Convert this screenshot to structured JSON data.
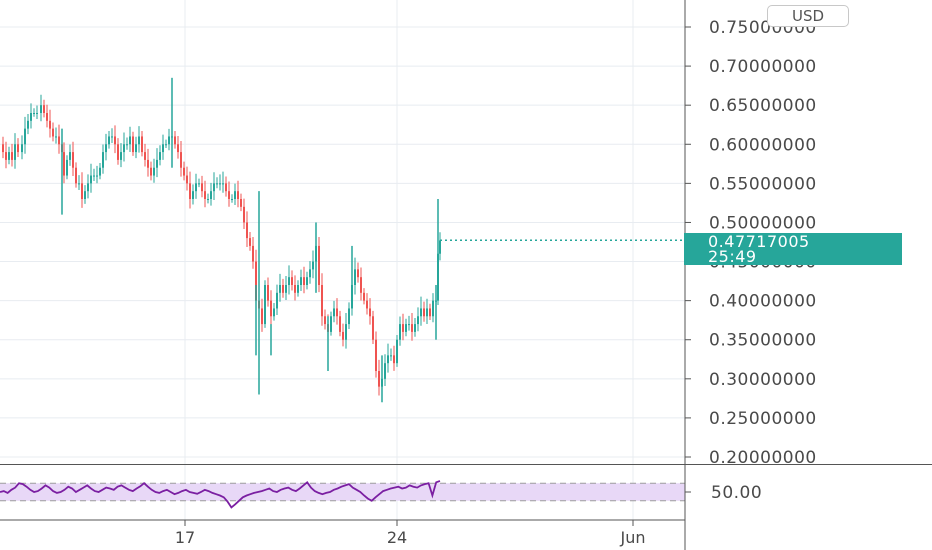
{
  "currency": "USD",
  "last_price": {
    "value": "0.47717005",
    "countdown": "25:49",
    "color": "#26a69a"
  },
  "colors": {
    "up": "#26a69a",
    "down": "#ef5350",
    "rsi_line": "#7b1fa2",
    "rsi_band": "#e8d8f7",
    "grid": "#e8ecf1",
    "axis_text": "#4a4a4a"
  },
  "chart_data": [
    {
      "type": "candlestick",
      "title": "",
      "xlabel": "",
      "ylabel": "",
      "ylim": [
        0.19,
        0.76
      ],
      "y_ticks": [
        "0.20000000",
        "0.25000000",
        "0.30000000",
        "0.35000000",
        "0.40000000",
        "0.45000000",
        "0.50000000",
        "0.55000000",
        "0.60000000",
        "0.65000000",
        "0.70000000",
        "0.75000000"
      ],
      "x_ticks": [
        "17",
        "24",
        "Jun"
      ],
      "grid": true,
      "last_value": 0.47717005,
      "ohlc_path": [
        [
          0,
          0.6
        ],
        [
          3,
          0.59
        ],
        [
          6,
          0.58
        ],
        [
          9,
          0.59
        ],
        [
          12,
          0.58
        ],
        [
          15,
          0.6
        ],
        [
          18,
          0.59
        ],
        [
          22,
          0.6
        ],
        [
          25,
          0.62
        ],
        [
          28,
          0.63
        ],
        [
          31,
          0.64
        ],
        [
          34,
          0.64
        ],
        [
          37,
          0.64
        ],
        [
          41,
          0.65
        ],
        [
          44,
          0.64
        ],
        [
          47,
          0.63
        ],
        [
          50,
          0.62
        ],
        [
          53,
          0.61
        ],
        [
          56,
          0.61
        ],
        [
          59,
          0.6
        ],
        [
          62,
          0.59
        ],
        [
          64,
          0.56
        ],
        [
          67,
          0.58
        ],
        [
          70,
          0.59
        ],
        [
          73,
          0.57
        ],
        [
          76,
          0.55
        ],
        [
          79,
          0.55
        ],
        [
          82,
          0.53
        ],
        [
          85,
          0.54
        ],
        [
          88,
          0.55
        ],
        [
          91,
          0.56
        ],
        [
          94,
          0.56
        ],
        [
          97,
          0.56
        ],
        [
          100,
          0.57
        ],
        [
          103,
          0.59
        ],
        [
          106,
          0.6
        ],
        [
          109,
          0.61
        ],
        [
          112,
          0.61
        ],
        [
          115,
          0.6
        ],
        [
          118,
          0.58
        ],
        [
          121,
          0.59
        ],
        [
          124,
          0.6
        ],
        [
          127,
          0.6
        ],
        [
          130,
          0.61
        ],
        [
          133,
          0.59
        ],
        [
          136,
          0.6
        ],
        [
          139,
          0.61
        ],
        [
          142,
          0.59
        ],
        [
          145,
          0.58
        ],
        [
          148,
          0.57
        ],
        [
          151,
          0.56
        ],
        [
          154,
          0.57
        ],
        [
          157,
          0.58
        ],
        [
          160,
          0.59
        ],
        [
          163,
          0.6
        ],
        [
          166,
          0.6
        ],
        [
          169,
          0.61
        ],
        [
          172,
          0.61
        ],
        [
          175,
          0.6
        ],
        [
          178,
          0.59
        ],
        [
          181,
          0.57
        ],
        [
          184,
          0.56
        ],
        [
          187,
          0.55
        ],
        [
          190,
          0.53
        ],
        [
          193,
          0.54
        ],
        [
          196,
          0.55
        ],
        [
          199,
          0.55
        ],
        [
          202,
          0.54
        ],
        [
          205,
          0.53
        ],
        [
          208,
          0.53
        ],
        [
          211,
          0.54
        ],
        [
          214,
          0.55
        ],
        [
          217,
          0.55
        ],
        [
          220,
          0.55
        ],
        [
          223,
          0.55
        ],
        [
          226,
          0.54
        ],
        [
          229,
          0.53
        ],
        [
          232,
          0.53
        ],
        [
          235,
          0.54
        ],
        [
          238,
          0.53
        ],
        [
          241,
          0.52
        ],
        [
          244,
          0.5
        ],
        [
          247,
          0.48
        ],
        [
          250,
          0.47
        ],
        [
          253,
          0.45
        ],
        [
          256,
          0.4
        ],
        [
          259,
          0.39
        ],
        [
          262,
          0.37
        ],
        [
          265,
          0.42
        ],
        [
          268,
          0.4
        ],
        [
          271,
          0.38
        ],
        [
          274,
          0.39
        ],
        [
          277,
          0.41
        ],
        [
          280,
          0.42
        ],
        [
          283,
          0.41
        ],
        [
          286,
          0.42
        ],
        [
          289,
          0.43
        ],
        [
          292,
          0.42
        ],
        [
          295,
          0.41
        ],
        [
          298,
          0.42
        ],
        [
          301,
          0.43
        ],
        [
          304,
          0.42
        ],
        [
          307,
          0.43
        ],
        [
          310,
          0.44
        ],
        [
          313,
          0.45
        ],
        [
          316,
          0.47
        ],
        [
          319,
          0.42
        ],
        [
          322,
          0.38
        ],
        [
          325,
          0.37
        ],
        [
          328,
          0.36
        ],
        [
          331,
          0.38
        ],
        [
          334,
          0.39
        ],
        [
          337,
          0.38
        ],
        [
          340,
          0.36
        ],
        [
          343,
          0.35
        ],
        [
          346,
          0.37
        ],
        [
          349,
          0.39
        ],
        [
          352,
          0.42
        ],
        [
          355,
          0.44
        ],
        [
          358,
          0.43
        ],
        [
          361,
          0.41
        ],
        [
          364,
          0.4
        ],
        [
          367,
          0.39
        ],
        [
          370,
          0.38
        ],
        [
          373,
          0.35
        ],
        [
          376,
          0.31
        ],
        [
          379,
          0.29
        ],
        [
          382,
          0.3
        ],
        [
          385,
          0.32
        ],
        [
          388,
          0.33
        ],
        [
          391,
          0.33
        ],
        [
          394,
          0.32
        ],
        [
          397,
          0.35
        ],
        [
          400,
          0.37
        ],
        [
          403,
          0.36
        ],
        [
          406,
          0.37
        ],
        [
          409,
          0.37
        ],
        [
          412,
          0.36
        ],
        [
          415,
          0.37
        ],
        [
          418,
          0.38
        ],
        [
          421,
          0.39
        ],
        [
          424,
          0.38
        ],
        [
          427,
          0.39
        ],
        [
          430,
          0.38
        ],
        [
          433,
          0.4
        ],
        [
          436,
          0.4
        ],
        [
          438,
          0.46
        ],
        [
          440,
          0.477
        ]
      ],
      "spikes": [
        {
          "x": 62,
          "high": 0.62,
          "low": 0.51
        },
        {
          "x": 172,
          "high": 0.685,
          "low": 0.57
        },
        {
          "x": 256,
          "high": 0.42,
          "low": 0.33
        },
        {
          "x": 259,
          "high": 0.54,
          "low": 0.28
        },
        {
          "x": 271,
          "high": 0.37,
          "low": 0.33
        },
        {
          "x": 316,
          "high": 0.5,
          "low": 0.41
        },
        {
          "x": 328,
          "high": 0.38,
          "low": 0.31
        },
        {
          "x": 352,
          "high": 0.47,
          "low": 0.4
        },
        {
          "x": 382,
          "high": 0.33,
          "low": 0.27
        },
        {
          "x": 436,
          "high": 0.42,
          "low": 0.35
        },
        {
          "x": 438,
          "high": 0.53,
          "low": 0.45
        }
      ]
    },
    {
      "type": "line",
      "title": "",
      "ylabel": "",
      "ylim": [
        0,
        100
      ],
      "y_ticks": [
        "50.00"
      ],
      "band": [
        30,
        70
      ],
      "values": [
        50,
        52,
        48,
        55,
        60,
        70,
        68,
        62,
        55,
        50,
        52,
        58,
        65,
        60,
        52,
        48,
        50,
        55,
        62,
        58,
        50,
        55,
        60,
        65,
        58,
        52,
        50,
        55,
        60,
        58,
        55,
        62,
        65,
        60,
        55,
        52,
        58,
        63,
        70,
        62,
        55,
        50,
        48,
        52,
        55,
        50,
        45,
        48,
        52,
        55,
        50,
        48,
        46,
        50,
        55,
        52,
        48,
        45,
        42,
        38,
        28,
        15,
        22,
        30,
        38,
        42,
        45,
        48,
        50,
        52,
        55,
        58,
        52,
        50,
        55,
        58,
        60,
        55,
        52,
        58,
        65,
        72,
        60,
        52,
        48,
        45,
        48,
        50,
        55,
        58,
        62,
        65,
        68,
        60,
        55,
        50,
        42,
        35,
        30,
        38,
        45,
        52,
        55,
        58,
        60,
        62,
        58,
        60,
        65,
        62,
        60,
        65,
        68,
        70,
        42,
        72,
        75
      ]
    }
  ]
}
